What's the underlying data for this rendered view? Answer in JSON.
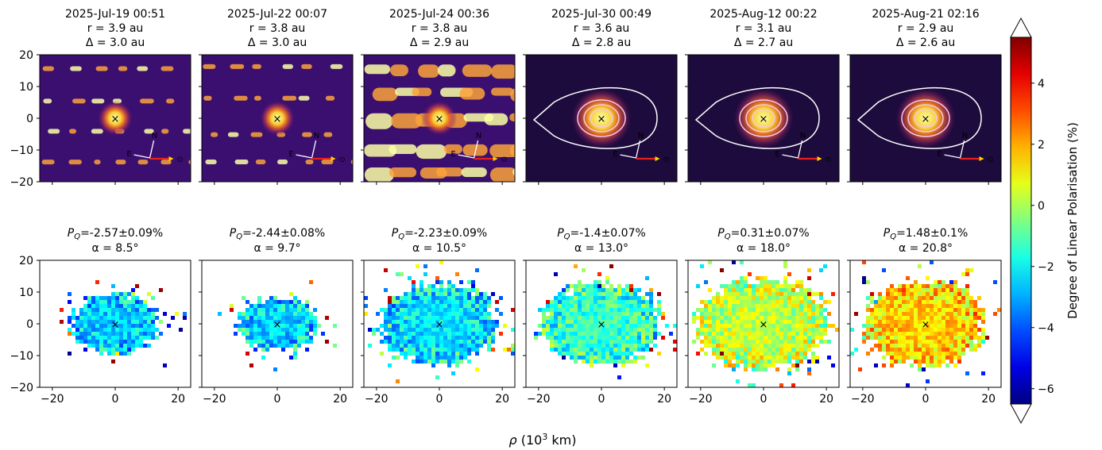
{
  "chart_data": {
    "type": "heatmap",
    "xlabel": "ρ (10³ km)",
    "xlabel_parts": {
      "rho": "ρ",
      "open": " (10",
      "exp": "3",
      "close": " km)"
    },
    "xlim": [
      -24,
      24
    ],
    "ylim": [
      -20,
      20
    ],
    "x_ticks": [
      -20,
      0,
      20
    ],
    "y_ticks": [
      20,
      10,
      0,
      -10,
      -20
    ],
    "colorbar": {
      "label": "Degree of Linear Polarisation (%)",
      "range": [
        -6.5,
        5.5
      ],
      "ticks": [
        4,
        2,
        0,
        -2,
        -4,
        -6
      ],
      "colormap": "jet",
      "extend": "both"
    },
    "compass": {
      "north": "N",
      "east": "E",
      "sun_symbol": "⊙"
    },
    "origin_marker": "×",
    "panels": [
      {
        "date": "2025-Jul-19 00:51",
        "r": "r = 3.9 au",
        "delta": "Δ = 3.0 au",
        "pq_label": "P",
        "pq_sub": "Q",
        "pq_value": "=-2.57±0.09%",
        "alpha": "α = 8.5°",
        "pq": -2.57,
        "pq_err": 0.09,
        "alpha_deg": 8.5
      },
      {
        "date": "2025-Jul-22 00:07",
        "r": "r = 3.8 au",
        "delta": "Δ = 3.0 au",
        "pq_label": "P",
        "pq_sub": "Q",
        "pq_value": "=-2.44±0.08%",
        "alpha": "α = 9.7°",
        "pq": -2.44,
        "pq_err": 0.08,
        "alpha_deg": 9.7
      },
      {
        "date": "2025-Jul-24 00:36",
        "r": "r = 3.8 au",
        "delta": "Δ = 2.9 au",
        "pq_label": "P",
        "pq_sub": "Q",
        "pq_value": "=-2.23±0.09%",
        "alpha": "α = 10.5°",
        "pq": -2.23,
        "pq_err": 0.09,
        "alpha_deg": 10.5
      },
      {
        "date": "2025-Jul-30 00:49",
        "r": "r = 3.6 au",
        "delta": "Δ = 2.8 au",
        "pq_label": "P",
        "pq_sub": "Q",
        "pq_value": "=-1.4±0.07%",
        "alpha": "α = 13.0°",
        "pq": -1.4,
        "pq_err": 0.07,
        "alpha_deg": 13.0
      },
      {
        "date": "2025-Aug-12 00:22",
        "r": "r = 3.1 au",
        "delta": "Δ = 2.7 au",
        "pq_label": "P",
        "pq_sub": "Q",
        "pq_value": "=0.31±0.07%",
        "alpha": "α = 18.0°",
        "pq": 0.31,
        "pq_err": 0.07,
        "alpha_deg": 18.0
      },
      {
        "date": "2025-Aug-21 02:16",
        "r": "r = 2.9 au",
        "delta": "Δ = 2.6 au",
        "pq_label": "P",
        "pq_sub": "Q",
        "pq_value": "=1.48±0.1%",
        "alpha": "α = 20.8°",
        "pq": 1.48,
        "pq_err": 0.1,
        "alpha_deg": 20.8
      }
    ],
    "colors": {
      "intensity_background": "#1b0c3f",
      "intensity_core": "#fcffa4",
      "contour": "#ffffff",
      "sun_arrow": "#e8201a",
      "sun_symbol": "#ffd400"
    }
  }
}
